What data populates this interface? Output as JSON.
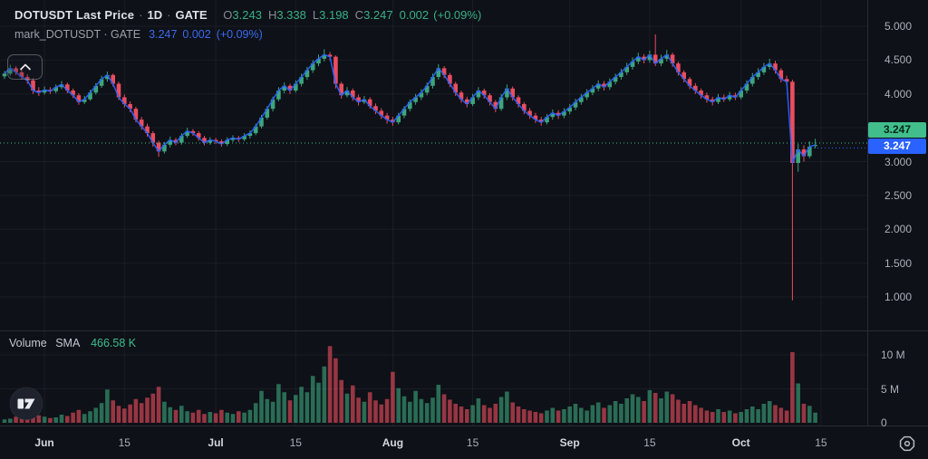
{
  "header": {
    "title": {
      "symbol": "DOTUSDT Last Price",
      "separator": "·",
      "interval": "1D",
      "exchange": "GATE"
    },
    "ohlc": {
      "o_label": "O",
      "o_value": "3.243",
      "h_label": "H",
      "h_value": "3.338",
      "l_label": "L",
      "l_value": "3.198",
      "c_label": "C",
      "c_value": "3.247",
      "change": "0.002",
      "change_pct": "(+0.09%)"
    },
    "indicator": {
      "name": "mark_DOTUSDT · GATE",
      "value": "3.247",
      "change": "0.002",
      "change_pct": "(+0.09%)"
    }
  },
  "volume_pane": {
    "label": "Volume",
    "sma_label": "SMA",
    "sma_value": "466.58 K"
  },
  "price_scale": {
    "labels": [
      {
        "text": "5.000",
        "value": 5.0
      },
      {
        "text": "4.500",
        "value": 4.5
      },
      {
        "text": "4.000",
        "value": 4.0
      },
      {
        "text": "3.500",
        "value": 3.5
      },
      {
        "text": "3.000",
        "value": 3.0
      },
      {
        "text": "2.500",
        "value": 2.5
      },
      {
        "text": "2.000",
        "value": 2.0
      },
      {
        "text": "1.500",
        "value": 1.5
      },
      {
        "text": "1.000",
        "value": 1.0
      }
    ],
    "last_badge": {
      "text": "3.247",
      "value": 3.247
    },
    "mark_badge": {
      "text": "3.247",
      "value": 3.247
    }
  },
  "volume_scale": {
    "labels": [
      {
        "text": "10 M",
        "value": 10
      },
      {
        "text": "5 M",
        "value": 5
      },
      {
        "text": "0",
        "value": 0
      }
    ]
  },
  "colors": {
    "up": "#3ca57d",
    "down": "#eb4d5f",
    "mark_line": "#2962ff",
    "badge_up": "#41be8c",
    "badge_mark": "#2962ff",
    "grid": "rgba(150,160,180,0.09)",
    "border": "#262b36",
    "dotted_last": "#3dbd8f",
    "text_green": "#38b088",
    "text_blue": "#3b6af0"
  },
  "chart_data": {
    "type": "candlestick",
    "title": "DOTUSDT Last Price · 1D · GATE",
    "symbol": "DOTUSDT",
    "interval": "1D",
    "exchange": "GATE",
    "legend_position": "top-left",
    "grid": true,
    "price_ylim": [
      0.5,
      5.4
    ],
    "price_ticks": [
      1.0,
      1.5,
      2.0,
      2.5,
      3.0,
      3.5,
      4.0,
      4.5,
      5.0
    ],
    "volume_ylim": [
      0,
      12000000
    ],
    "volume_ticks": [
      0,
      5000000,
      10000000
    ],
    "last_price": 3.247,
    "mark_price": 3.247,
    "volume_sma": 466580,
    "x_ticks": [
      {
        "label": "Jun",
        "day_index": 7,
        "major": true
      },
      {
        "label": "15",
        "day_index": 21,
        "major": false
      },
      {
        "label": "Jul",
        "day_index": 37,
        "major": true
      },
      {
        "label": "15",
        "day_index": 51,
        "major": false
      },
      {
        "label": "Aug",
        "day_index": 68,
        "major": true
      },
      {
        "label": "15",
        "day_index": 82,
        "major": false
      },
      {
        "label": "Sep",
        "day_index": 99,
        "major": true
      },
      {
        "label": "15",
        "day_index": 113,
        "major": false
      },
      {
        "label": "Oct",
        "day_index": 129,
        "major": true
      },
      {
        "label": "15",
        "day_index": 143,
        "major": false
      }
    ],
    "candles_format": [
      "open",
      "high",
      "low",
      "close",
      "volume_millions"
    ],
    "candles": [
      [
        4.26,
        4.34,
        4.22,
        4.3,
        0.5
      ],
      [
        4.3,
        4.43,
        4.27,
        4.38,
        0.6
      ],
      [
        4.38,
        4.41,
        4.28,
        4.32,
        0.9
      ],
      [
        4.32,
        4.36,
        4.21,
        4.25,
        0.7
      ],
      [
        4.25,
        4.29,
        4.15,
        4.2,
        1.3
      ],
      [
        4.2,
        4.23,
        4.0,
        4.05,
        2.3
      ],
      [
        4.05,
        4.1,
        3.97,
        4.02,
        1.1
      ],
      [
        4.02,
        4.11,
        3.99,
        4.06,
        0.9
      ],
      [
        4.06,
        4.1,
        4.0,
        4.04,
        0.7
      ],
      [
        4.04,
        4.14,
        4.01,
        4.1,
        0.8
      ],
      [
        4.1,
        4.19,
        4.07,
        4.14,
        1.2
      ],
      [
        4.14,
        4.17,
        4.01,
        4.05,
        1.0
      ],
      [
        4.05,
        4.08,
        3.94,
        3.98,
        1.5
      ],
      [
        3.98,
        4.01,
        3.84,
        3.88,
        1.9
      ],
      [
        3.88,
        3.97,
        3.85,
        3.92,
        1.3
      ],
      [
        3.92,
        4.06,
        3.9,
        4.02,
        1.7
      ],
      [
        4.02,
        4.16,
        3.99,
        4.12,
        2.2
      ],
      [
        4.12,
        4.27,
        4.09,
        4.22,
        2.9
      ],
      [
        4.22,
        4.33,
        4.18,
        4.28,
        4.9
      ],
      [
        4.28,
        4.3,
        4.11,
        4.15,
        3.3
      ],
      [
        4.15,
        4.18,
        3.91,
        3.95,
        2.5
      ],
      [
        3.95,
        3.99,
        3.8,
        3.85,
        2.1
      ],
      [
        3.85,
        3.89,
        3.73,
        3.78,
        2.7
      ],
      [
        3.78,
        3.81,
        3.58,
        3.62,
        3.5
      ],
      [
        3.62,
        3.66,
        3.47,
        3.52,
        2.9
      ],
      [
        3.52,
        3.56,
        3.37,
        3.42,
        3.7
      ],
      [
        3.42,
        3.45,
        3.22,
        3.28,
        4.3
      ],
      [
        3.28,
        3.31,
        3.07,
        3.15,
        5.3
      ],
      [
        3.15,
        3.29,
        3.12,
        3.25,
        3.1
      ],
      [
        3.25,
        3.37,
        3.21,
        3.32,
        2.3
      ],
      [
        3.32,
        3.35,
        3.24,
        3.28,
        1.9
      ],
      [
        3.28,
        3.42,
        3.25,
        3.38,
        2.5
      ],
      [
        3.38,
        3.5,
        3.35,
        3.45,
        1.7
      ],
      [
        3.45,
        3.48,
        3.38,
        3.42,
        1.5
      ],
      [
        3.42,
        3.45,
        3.31,
        3.35,
        1.9
      ],
      [
        3.35,
        3.38,
        3.24,
        3.28,
        1.3
      ],
      [
        3.28,
        3.36,
        3.25,
        3.32,
        1.6
      ],
      [
        3.32,
        3.35,
        3.26,
        3.3,
        1.4
      ],
      [
        3.3,
        3.33,
        3.22,
        3.26,
        1.9
      ],
      [
        3.26,
        3.36,
        3.23,
        3.32,
        1.5
      ],
      [
        3.32,
        3.39,
        3.29,
        3.35,
        1.3
      ],
      [
        3.35,
        3.38,
        3.29,
        3.33,
        1.7
      ],
      [
        3.33,
        3.42,
        3.3,
        3.38,
        1.5
      ],
      [
        3.38,
        3.46,
        3.34,
        3.42,
        1.9
      ],
      [
        3.42,
        3.56,
        3.39,
        3.52,
        2.9
      ],
      [
        3.52,
        3.69,
        3.49,
        3.65,
        4.7
      ],
      [
        3.65,
        3.82,
        3.62,
        3.78,
        3.5
      ],
      [
        3.78,
        3.96,
        3.74,
        3.92,
        3.1
      ],
      [
        3.92,
        4.1,
        3.89,
        4.05,
        5.7
      ],
      [
        4.05,
        4.17,
        4.01,
        4.12,
        4.5
      ],
      [
        4.12,
        4.15,
        4.0,
        4.05,
        3.3
      ],
      [
        4.05,
        4.2,
        4.02,
        4.15,
        4.1
      ],
      [
        4.15,
        4.3,
        4.11,
        4.25,
        5.3
      ],
      [
        4.25,
        4.4,
        4.21,
        4.35,
        4.5
      ],
      [
        4.35,
        4.5,
        4.31,
        4.45,
        6.9
      ],
      [
        4.45,
        4.58,
        4.41,
        4.52,
        5.9
      ],
      [
        4.52,
        4.66,
        4.48,
        4.58,
        8.3
      ],
      [
        4.58,
        4.62,
        4.49,
        4.55,
        11.3
      ],
      [
        4.55,
        4.57,
        4.08,
        4.15,
        9.5
      ],
      [
        4.15,
        4.18,
        3.93,
        3.98,
        6.3
      ],
      [
        3.98,
        4.1,
        3.95,
        4.05,
        4.3
      ],
      [
        4.05,
        4.08,
        3.9,
        3.95,
        5.5
      ],
      [
        3.95,
        3.99,
        3.83,
        3.88,
        3.7
      ],
      [
        3.88,
        3.97,
        3.85,
        3.92,
        3.1
      ],
      [
        3.92,
        3.95,
        3.78,
        3.82,
        4.5
      ],
      [
        3.82,
        3.86,
        3.7,
        3.75,
        3.3
      ],
      [
        3.75,
        3.79,
        3.63,
        3.68,
        2.7
      ],
      [
        3.68,
        3.72,
        3.56,
        3.62,
        3.5
      ],
      [
        3.62,
        3.66,
        3.53,
        3.58,
        7.5
      ],
      [
        3.58,
        3.72,
        3.55,
        3.68,
        5.1
      ],
      [
        3.68,
        3.82,
        3.64,
        3.78,
        3.9
      ],
      [
        3.78,
        3.92,
        3.74,
        3.88,
        3.1
      ],
      [
        3.88,
        4.0,
        3.84,
        3.95,
        4.7
      ],
      [
        3.95,
        4.07,
        3.91,
        4.02,
        3.5
      ],
      [
        4.02,
        4.17,
        3.98,
        4.12,
        2.9
      ],
      [
        4.12,
        4.3,
        4.08,
        4.25,
        3.7
      ],
      [
        4.25,
        4.44,
        4.21,
        4.38,
        5.6
      ],
      [
        4.38,
        4.41,
        4.23,
        4.28,
        4.2
      ],
      [
        4.28,
        4.31,
        4.1,
        4.15,
        3.4
      ],
      [
        4.15,
        4.18,
        3.97,
        4.02,
        2.8
      ],
      [
        4.02,
        4.05,
        3.87,
        3.92,
        2.4
      ],
      [
        3.92,
        3.96,
        3.8,
        3.85,
        2.0
      ],
      [
        3.85,
        4.0,
        3.82,
        3.95,
        2.6
      ],
      [
        3.95,
        4.1,
        3.91,
        4.05,
        3.6
      ],
      [
        4.05,
        4.08,
        3.93,
        3.98,
        2.6
      ],
      [
        3.98,
        4.01,
        3.83,
        3.88,
        2.2
      ],
      [
        3.88,
        3.91,
        3.73,
        3.78,
        2.8
      ],
      [
        3.78,
        4.0,
        3.75,
        3.95,
        3.8
      ],
      [
        3.95,
        4.14,
        3.91,
        4.08,
        4.6
      ],
      [
        4.08,
        4.11,
        3.9,
        3.95,
        3.0
      ],
      [
        3.95,
        3.98,
        3.8,
        3.85,
        2.4
      ],
      [
        3.85,
        3.88,
        3.7,
        3.75,
        2.0
      ],
      [
        3.75,
        3.79,
        3.63,
        3.68,
        1.8
      ],
      [
        3.68,
        3.72,
        3.57,
        3.62,
        1.6
      ],
      [
        3.62,
        3.66,
        3.53,
        3.58,
        1.4
      ],
      [
        3.58,
        3.7,
        3.55,
        3.66,
        1.8
      ],
      [
        3.66,
        3.77,
        3.62,
        3.72,
        2.2
      ],
      [
        3.72,
        3.76,
        3.63,
        3.68,
        1.8
      ],
      [
        3.68,
        3.79,
        3.64,
        3.74,
        2.0
      ],
      [
        3.74,
        3.85,
        3.7,
        3.8,
        2.4
      ],
      [
        3.8,
        3.93,
        3.76,
        3.88,
        2.8
      ],
      [
        3.88,
        4.0,
        3.84,
        3.95,
        2.2
      ],
      [
        3.95,
        4.07,
        3.91,
        4.02,
        1.8
      ],
      [
        4.02,
        4.13,
        3.98,
        4.08,
        2.6
      ],
      [
        4.08,
        4.2,
        4.04,
        4.15,
        3.0
      ],
      [
        4.15,
        4.19,
        4.05,
        4.1,
        2.2
      ],
      [
        4.1,
        4.23,
        4.06,
        4.18,
        2.6
      ],
      [
        4.18,
        4.3,
        4.14,
        4.25,
        3.2
      ],
      [
        4.25,
        4.37,
        4.21,
        4.32,
        2.8
      ],
      [
        4.32,
        4.46,
        4.28,
        4.4,
        3.6
      ],
      [
        4.4,
        4.54,
        4.36,
        4.48,
        4.2
      ],
      [
        4.48,
        4.61,
        4.44,
        4.55,
        3.8
      ],
      [
        4.55,
        4.59,
        4.45,
        4.5,
        3.2
      ],
      [
        4.5,
        4.64,
        4.46,
        4.58,
        4.8
      ],
      [
        4.58,
        4.88,
        4.41,
        4.45,
        4.4
      ],
      [
        4.45,
        4.58,
        4.41,
        4.52,
        3.6
      ],
      [
        4.52,
        4.65,
        4.48,
        4.58,
        4.6
      ],
      [
        4.58,
        4.61,
        4.4,
        4.45,
        4.2
      ],
      [
        4.45,
        4.48,
        4.27,
        4.32,
        3.4
      ],
      [
        4.32,
        4.35,
        4.17,
        4.22,
        2.8
      ],
      [
        4.22,
        4.25,
        4.07,
        4.12,
        3.2
      ],
      [
        4.12,
        4.16,
        4.0,
        4.05,
        2.6
      ],
      [
        4.05,
        4.08,
        3.93,
        3.98,
        2.2
      ],
      [
        3.98,
        4.02,
        3.87,
        3.92,
        1.8
      ],
      [
        3.92,
        3.96,
        3.83,
        3.88,
        1.6
      ],
      [
        3.88,
        4.0,
        3.85,
        3.95,
        2.0
      ],
      [
        3.95,
        3.99,
        3.88,
        3.92,
        1.6
      ],
      [
        3.92,
        4.03,
        3.89,
        3.98,
        1.8
      ],
      [
        3.98,
        4.02,
        3.91,
        3.95,
        1.4
      ],
      [
        3.95,
        4.1,
        3.92,
        4.05,
        1.6
      ],
      [
        4.05,
        4.2,
        4.01,
        4.15,
        2.0
      ],
      [
        4.15,
        4.31,
        4.11,
        4.25,
        2.4
      ],
      [
        4.25,
        4.38,
        4.21,
        4.32,
        2.0
      ],
      [
        4.32,
        4.46,
        4.28,
        4.4,
        2.8
      ],
      [
        4.4,
        4.52,
        4.36,
        4.45,
        3.2
      ],
      [
        4.45,
        4.49,
        4.3,
        4.35,
        2.6
      ],
      [
        4.35,
        4.38,
        4.17,
        4.22,
        2.2
      ],
      [
        4.22,
        4.27,
        4.12,
        4.18,
        1.8
      ],
      [
        4.18,
        4.21,
        0.95,
        2.98,
        10.4
      ],
      [
        2.98,
        3.26,
        2.85,
        3.18,
        5.8
      ],
      [
        3.18,
        3.24,
        3.0,
        3.08,
        2.8
      ],
      [
        3.08,
        3.3,
        3.05,
        3.22,
        2.5
      ],
      [
        3.243,
        3.338,
        3.198,
        3.247,
        1.5
      ]
    ]
  }
}
